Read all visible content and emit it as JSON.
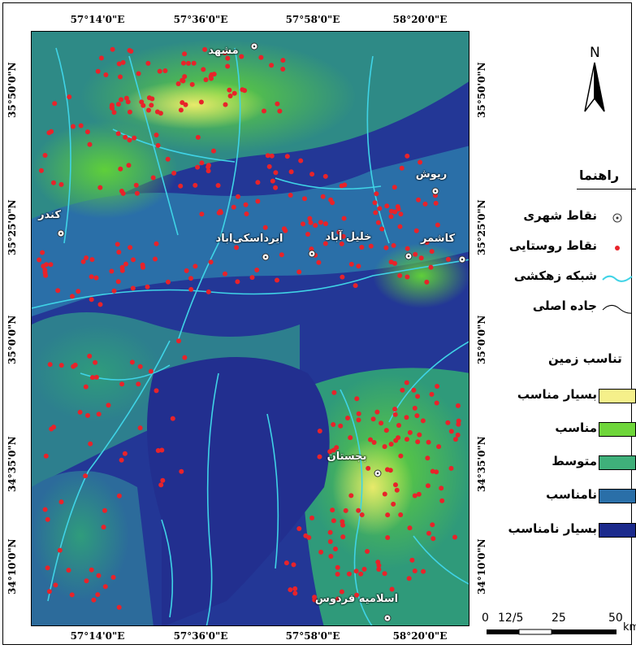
{
  "axes": {
    "top_ticks": [
      "57°14'0\"E",
      "57°36'0\"E",
      "57°58'0\"E",
      "58°20'0\"E"
    ],
    "bottom_ticks": [
      "57°14'0\"E",
      "57°36'0\"E",
      "57°58'0\"E",
      "58°20'0\"E"
    ],
    "left_ticks": [
      "35°50'0\"N",
      "35°25'0\"N",
      "35°0'0\"N",
      "34°35'0\"N",
      "34°10'0\"N"
    ],
    "right_ticks": [
      "35°50'0\"N",
      "35°25'0\"N",
      "35°0'0\"N",
      "34°35'0\"N",
      "34°10'0\"N"
    ]
  },
  "places": [
    {
      "name": "مشهد",
      "kind": "urban"
    },
    {
      "name": "ریوش",
      "kind": "urban"
    },
    {
      "name": "کندر",
      "kind": "urban"
    },
    {
      "name": "ایرداسکی‌اباد",
      "kind": "urban"
    },
    {
      "name": "خلیل آباد",
      "kind": "urban"
    },
    {
      "name": "کاشمر",
      "kind": "urban"
    },
    {
      "name": "بجستان",
      "kind": "urban"
    },
    {
      "name": "اسلامیه فردوس",
      "kind": "urban"
    }
  ],
  "north_label": "N",
  "legend": {
    "title": "راهنما",
    "items": [
      {
        "label": "نقاط شهری",
        "symbol": "urban-point-icon"
      },
      {
        "label": "نقاط روستایی",
        "symbol": "rural-point-icon",
        "color": "#e8232a"
      },
      {
        "label": "شبکه زهکشی",
        "symbol": "drainage-line-icon",
        "color": "#3fd3e6"
      },
      {
        "label": "جاده اصلی",
        "symbol": "road-line-icon",
        "color": "#000000"
      }
    ],
    "suitability_title": "تناسب زمین",
    "classes": [
      {
        "label": "بسیار مناسب",
        "color": "#f5f08a"
      },
      {
        "label": "مناسب",
        "color": "#6ed63a"
      },
      {
        "label": "متوسط",
        "color": "#3fb07a"
      },
      {
        "label": "نامناسب",
        "color": "#2a6fa8"
      },
      {
        "label": "بسیار نامناسب",
        "color": "#1b2a8c"
      }
    ]
  },
  "scale_bar": {
    "labels": [
      "0",
      "12/5",
      "25",
      "50"
    ],
    "unit": "km"
  }
}
